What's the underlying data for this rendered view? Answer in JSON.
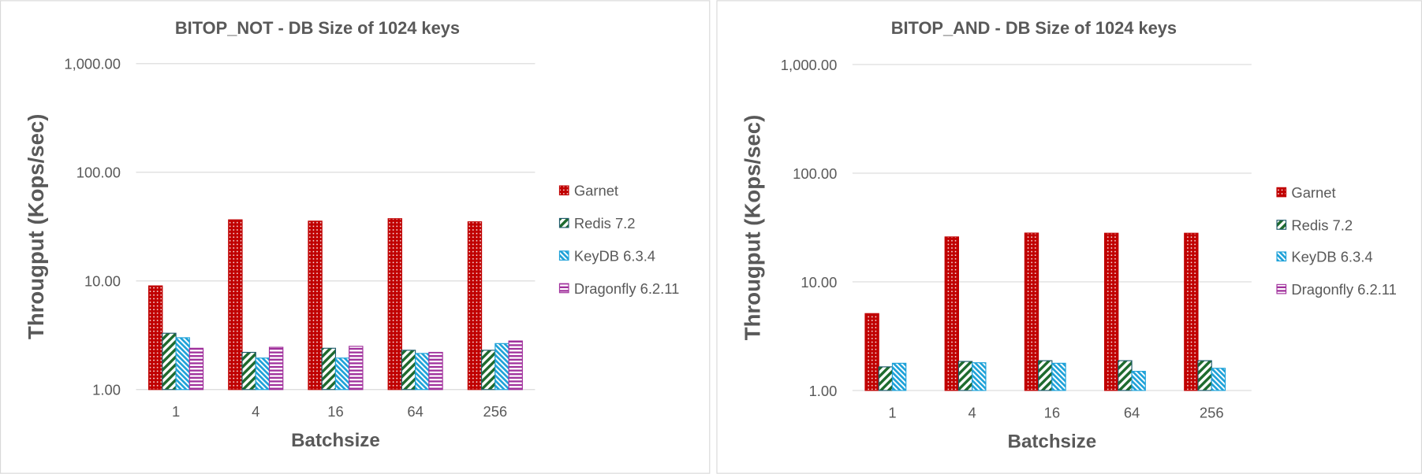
{
  "chart_data": [
    {
      "type": "bar",
      "title": "BITOP_NOT  - DB Size of 1024 keys",
      "xlabel": "Batchsize",
      "ylabel": "Througput (Kops/sec)",
      "yscale": "log",
      "ylim": [
        1,
        1000
      ],
      "yticks": [
        "1.00",
        "10.00",
        "100.00",
        "1,000.00"
      ],
      "grid": true,
      "legend": "right",
      "categories": [
        "1",
        "4",
        "16",
        "64",
        "256"
      ],
      "series": [
        {
          "name": "Garnet",
          "values": [
            9.0,
            36.5,
            35.5,
            37.4,
            35.0
          ]
        },
        {
          "name": "Redis 7.2",
          "values": [
            3.3,
            2.2,
            2.4,
            2.3,
            2.3
          ]
        },
        {
          "name": "KeyDB 6.3.4",
          "values": [
            3.0,
            1.95,
            1.95,
            2.15,
            2.65
          ]
        },
        {
          "name": "Dragonfly 6.2.11",
          "values": [
            2.4,
            2.45,
            2.5,
            2.2,
            2.8
          ]
        }
      ]
    },
    {
      "type": "bar",
      "title": "BITOP_AND - DB Size of 1024 keys",
      "xlabel": "Batchsize",
      "ylabel": "Througput (Kops/sec)",
      "yscale": "log",
      "ylim": [
        1,
        1000
      ],
      "yticks": [
        "1.00",
        "10.00",
        "100.00",
        "1,000.00"
      ],
      "grid": true,
      "legend": "right",
      "categories": [
        "1",
        "4",
        "16",
        "64",
        "256"
      ],
      "series": [
        {
          "name": "Garnet",
          "values": [
            5.1,
            25.9,
            28.1,
            28.0,
            28.0
          ]
        },
        {
          "name": "Redis 7.2",
          "values": [
            1.65,
            1.85,
            1.88,
            1.88,
            1.88
          ]
        },
        {
          "name": "KeyDB 6.3.4",
          "values": [
            1.78,
            1.8,
            1.78,
            1.5,
            1.6
          ]
        },
        {
          "name": "Dragonfly 6.2.11",
          "values": [
            null,
            null,
            null,
            null,
            null
          ]
        }
      ]
    }
  ],
  "colors": {
    "Garnet": "#c00000",
    "Redis 7.2": "#1e6b2e",
    "KeyDB 6.3.4": "#1da1d8",
    "Dragonfly 6.2.11": "#a0309c"
  }
}
